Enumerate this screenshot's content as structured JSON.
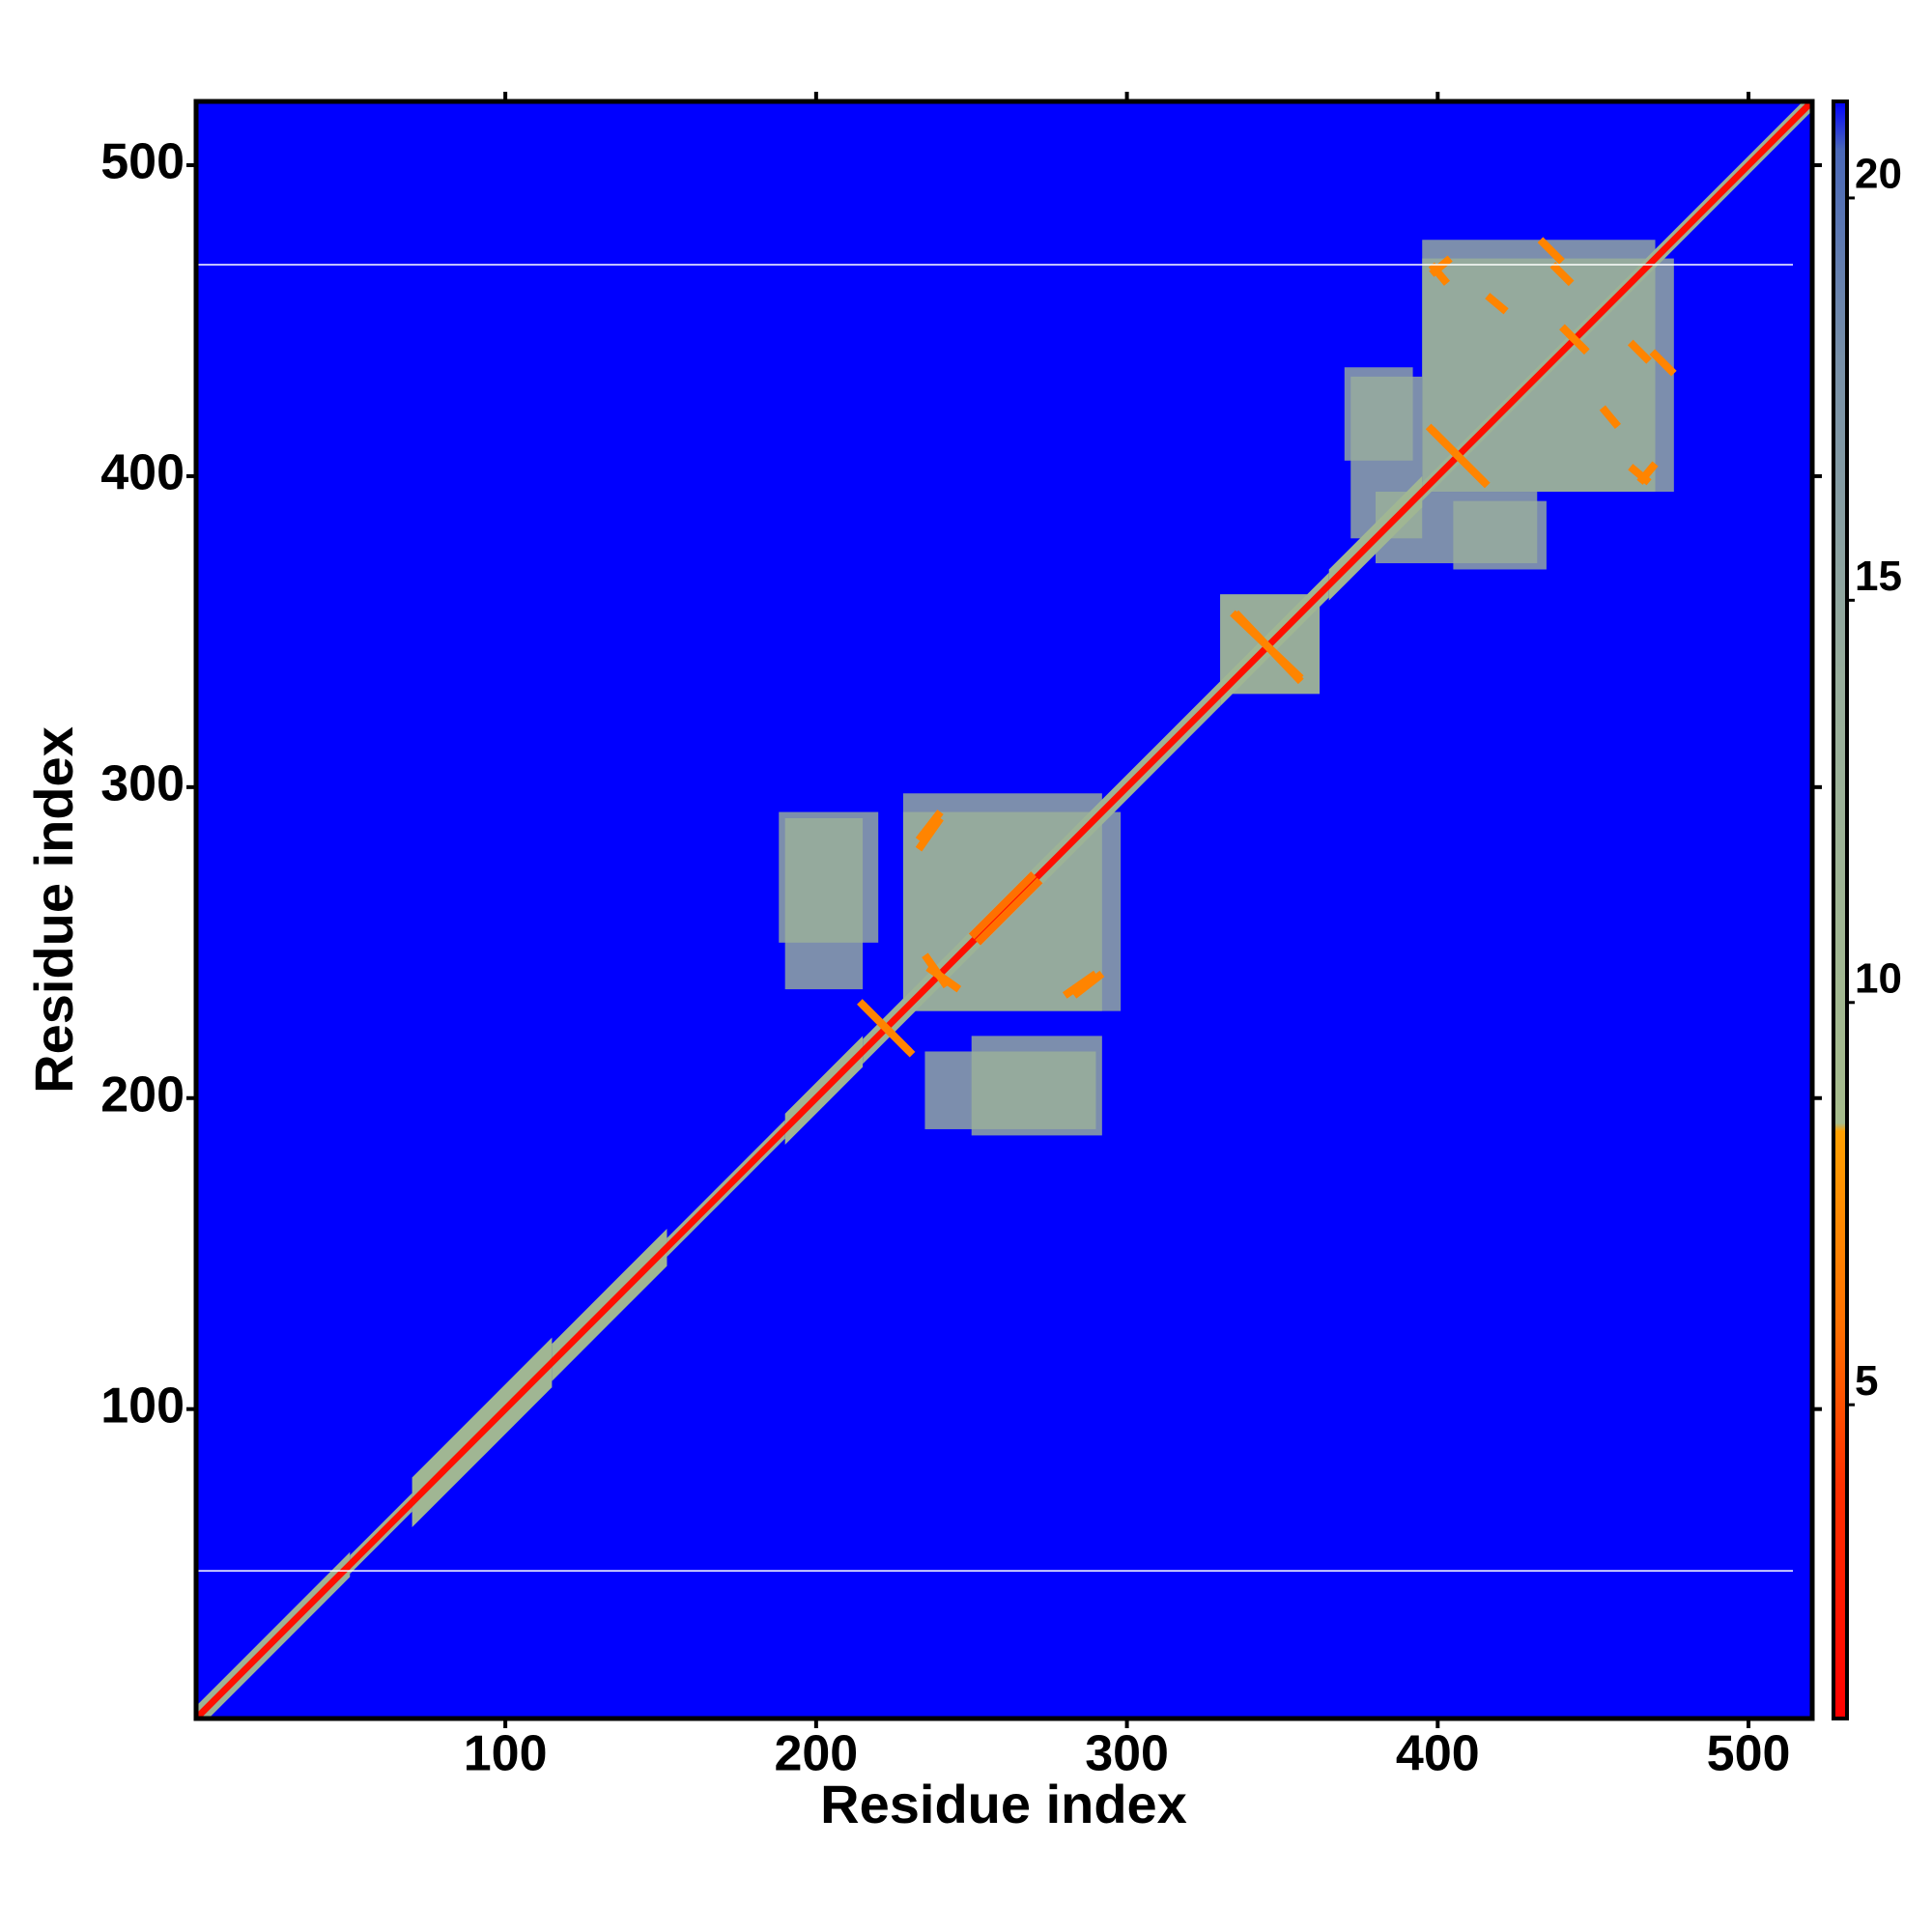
{
  "chart_data": {
    "type": "heatmap",
    "xlabel": "Residue index",
    "ylabel": "Residue index",
    "xlim": [
      0.5,
      520.5
    ],
    "ylim": [
      0.5,
      520.5
    ],
    "xticks": [
      100,
      200,
      300,
      400,
      500
    ],
    "yticks": [
      100,
      200,
      300,
      400,
      500
    ],
    "clim": [
      1.1,
      21.2
    ],
    "cticks": [
      5,
      10,
      15,
      20
    ],
    "colorscale": [
      [
        1.1,
        "#ff0000"
      ],
      [
        4,
        "#ff3000"
      ],
      [
        6,
        "#ff7000"
      ],
      [
        8.4,
        "#ffa000"
      ],
      [
        8.5,
        "#a6bc8c"
      ],
      [
        14,
        "#98ae9c"
      ],
      [
        18,
        "#7890a8"
      ],
      [
        20.6,
        "#4a68b8"
      ],
      [
        21.2,
        "#0000ff"
      ]
    ],
    "background": 21.2,
    "hlines": [
      48,
      468
    ],
    "hline_color": "#ffffff",
    "bands": [
      {
        "start": 1,
        "end": 50,
        "width": 4,
        "value": 12
      },
      {
        "start": 50,
        "end": 70,
        "width": 3,
        "value": 12
      },
      {
        "start": 70,
        "end": 115,
        "width": 8,
        "value": 11
      },
      {
        "start": 115,
        "end": 152,
        "width": 6,
        "value": 11
      },
      {
        "start": 152,
        "end": 190,
        "width": 3,
        "value": 12
      },
      {
        "start": 190,
        "end": 215,
        "width": 5,
        "value": 11
      },
      {
        "start": 215,
        "end": 330,
        "width": 4,
        "value": 12
      },
      {
        "start": 330,
        "end": 365,
        "width": 4,
        "value": 11
      },
      {
        "start": 365,
        "end": 395,
        "width": 5,
        "value": 11
      },
      {
        "start": 395,
        "end": 520,
        "width": 3,
        "value": 12
      },
      {
        "start": 1,
        "end": 520,
        "width": 1.5,
        "value": 2
      }
    ],
    "patches": [
      {
        "x": [
          188,
          220
        ],
        "y": [
          250,
          292
        ],
        "value": 13
      },
      {
        "x": [
          228,
          292
        ],
        "y": [
          228,
          298
        ],
        "value": 13
      },
      {
        "x": [
          235,
          290
        ],
        "y": [
          190,
          215
        ],
        "value": 13
      },
      {
        "x": [
          330,
          362
        ],
        "y": [
          330,
          362
        ],
        "value": 12
      },
      {
        "x": [
          372,
          395
        ],
        "y": [
          380,
          432
        ],
        "value": 13
      },
      {
        "x": [
          395,
          470
        ],
        "y": [
          395,
          476
        ],
        "value": 13
      },
      {
        "x": [
          405,
          435
        ],
        "y": [
          370,
          392
        ],
        "value": 14
      }
    ],
    "segments": [
      {
        "x": [
          215,
          231
        ],
        "y": [
          230,
          214
        ],
        "value": 7
      },
      {
        "x": [
          335,
          356
        ],
        "y": [
          356,
          334
        ],
        "value": 7
      },
      {
        "x": [
          398,
          416
        ],
        "y": [
          415,
          397
        ],
        "value": 7
      },
      {
        "x": [
          398,
          404
        ],
        "y": [
          465,
          470
        ],
        "value": 7
      },
      {
        "x": [
          433,
          440
        ],
        "y": [
          476,
          469
        ],
        "value": 7
      },
      {
        "x": [
          416,
          422
        ],
        "y": [
          458,
          453
        ],
        "value": 7
      },
      {
        "x": [
          440,
          448
        ],
        "y": [
          448,
          440
        ],
        "value": 7
      },
      {
        "x": [
          462,
          468
        ],
        "y": [
          403,
          398
        ],
        "value": 7
      },
      {
        "x": [
          462,
          468
        ],
        "y": [
          443,
          437
        ],
        "value": 7
      },
      {
        "x": [
          233,
          240
        ],
        "y": [
          283,
          292
        ],
        "value": 7
      },
      {
        "x": [
          236,
          246
        ],
        "y": [
          242,
          235
        ],
        "value": 7
      },
      {
        "x": [
          280,
          290
        ],
        "y": [
          233,
          240
        ],
        "value": 7
      },
      {
        "x": [
          250,
          270
        ],
        "y": [
          252,
          272
        ],
        "value": 6
      }
    ]
  }
}
